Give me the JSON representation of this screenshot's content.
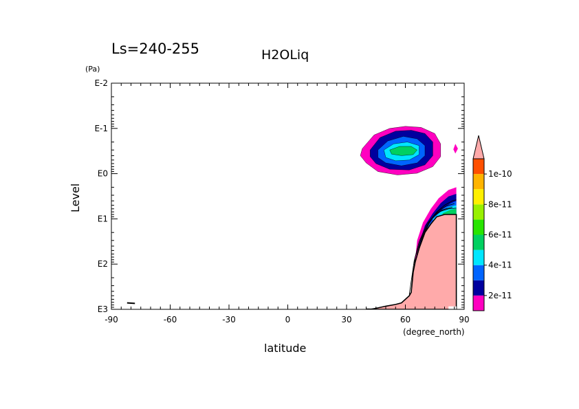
{
  "header": {
    "season": "Ls=240-255",
    "variable": "H2OLiq"
  },
  "chart_data": {
    "type": "heatmap",
    "title": "H2OLiq",
    "subtitle": "Ls=240-255",
    "xlabel": "latitude",
    "xunit": "(degree_north)",
    "ylabel": "Level",
    "yunit": "(Pa)",
    "xlim": [
      -90,
      90
    ],
    "x_ticks": [
      -90,
      -60,
      -30,
      0,
      30,
      60,
      90
    ],
    "x_tick_labels": [
      "-90",
      "-60",
      "-30",
      "0",
      "30",
      "60",
      "90"
    ],
    "ylim_pa": [
      0.01,
      1000
    ],
    "y_scale": "log",
    "y_inverted": true,
    "y_ticks_pa": [
      0.01,
      0.1,
      1,
      10,
      100,
      1000
    ],
    "y_tick_labels": [
      "E-2",
      "E-1",
      "E0",
      "E1",
      "E2",
      "E3"
    ],
    "colorbar": {
      "levels": [
        1e-11,
        2e-11,
        3e-11,
        4e-11,
        5e-11,
        6e-11,
        7e-11,
        8e-11,
        9e-11,
        1e-10,
        1.1e-10
      ],
      "colors": [
        "#ff00c0",
        "#00009e",
        "#0064ff",
        "#00e6ff",
        "#00d060",
        "#28e400",
        "#98f000",
        "#fff000",
        "#ffb400",
        "#ff5000",
        "#ff6464"
      ],
      "extend_color": "#ffaaaa",
      "labels": [
        "2e-11",
        "4e-11",
        "6e-11",
        "8e-11",
        "1e-10"
      ],
      "label_values": [
        2e-11,
        4e-11,
        6e-11,
        8e-11,
        1e-10
      ]
    },
    "terrain_color": "#ffaaaa",
    "features": [
      {
        "name": "upper-cloud-band",
        "rings": [
          {
            "level": 1e-11,
            "points": [
              [
                38,
                0.28
              ],
              [
                44,
                0.14
              ],
              [
                52,
                0.1
              ],
              [
                60,
                0.09
              ],
              [
                68,
                0.095
              ],
              [
                75,
                0.13
              ],
              [
                78,
                0.22
              ],
              [
                78,
                0.42
              ],
              [
                74,
                0.7
              ],
              [
                66,
                0.98
              ],
              [
                56,
                1.07
              ],
              [
                46,
                0.9
              ],
              [
                40,
                0.58
              ],
              [
                37,
                0.4
              ]
            ]
          },
          {
            "level": 2e-11,
            "points": [
              [
                42,
                0.3
              ],
              [
                47,
                0.16
              ],
              [
                55,
                0.115
              ],
              [
                63,
                0.11
              ],
              [
                70,
                0.13
              ],
              [
                74,
                0.2
              ],
              [
                74,
                0.4
              ],
              [
                70,
                0.64
              ],
              [
                62,
                0.83
              ],
              [
                52,
                0.8
              ],
              [
                45,
                0.6
              ],
              [
                42,
                0.42
              ]
            ]
          },
          {
            "level": 3e-11,
            "points": [
              [
                46,
                0.3
              ],
              [
                51,
                0.19
              ],
              [
                59,
                0.15
              ],
              [
                66,
                0.17
              ],
              [
                70,
                0.24
              ],
              [
                70,
                0.4
              ],
              [
                66,
                0.58
              ],
              [
                58,
                0.67
              ],
              [
                50,
                0.58
              ],
              [
                46,
                0.44
              ]
            ]
          },
          {
            "level": 4e-11,
            "points": [
              [
                49,
                0.3
              ],
              [
                54,
                0.22
              ],
              [
                61,
                0.2
              ],
              [
                67,
                0.24
              ],
              [
                67,
                0.38
              ],
              [
                62,
                0.5
              ],
              [
                55,
                0.52
              ],
              [
                50,
                0.44
              ]
            ]
          },
          {
            "level": 5e-11,
            "points": [
              [
                52,
                0.3
              ],
              [
                57,
                0.25
              ],
              [
                63,
                0.25
              ],
              [
                66,
                0.3
              ],
              [
                64,
                0.38
              ],
              [
                58,
                0.4
              ],
              [
                53,
                0.37
              ]
            ]
          }
        ]
      },
      {
        "name": "edge-blob",
        "rings": [
          {
            "level": 1e-11,
            "points": [
              [
                85.5,
                0.22
              ],
              [
                86.8,
                0.28
              ],
              [
                85.5,
                0.36
              ],
              [
                84.5,
                0.29
              ]
            ]
          }
        ]
      },
      {
        "name": "topography-cloud",
        "rings": [
          {
            "level": 1e-11,
            "points": [
              [
                64,
                500
              ],
              [
                65,
                80
              ],
              [
                66,
                30
              ],
              [
                69,
                12
              ],
              [
                73,
                6
              ],
              [
                77,
                3.5
              ],
              [
                82,
                2.3
              ],
              [
                86,
                2.0
              ],
              [
                86,
                850
              ],
              [
                64,
                850
              ]
            ]
          },
          {
            "level": 2e-11,
            "points": [
              [
                65,
                480
              ],
              [
                66,
                90
              ],
              [
                67,
                35
              ],
              [
                70,
                14
              ],
              [
                74,
                7.5
              ],
              [
                78,
                4.5
              ],
              [
                82,
                3.2
              ],
              [
                86,
                2.8
              ],
              [
                86,
                850
              ],
              [
                65,
                850
              ]
            ]
          },
          {
            "level": 3e-11,
            "points": [
              [
                71,
                15
              ],
              [
                75,
                9
              ],
              [
                79,
                6
              ],
              [
                83,
                4.6
              ],
              [
                86,
                4.0
              ],
              [
                86,
                14
              ],
              [
                71,
                16
              ]
            ]
          },
          {
            "level": 4e-11,
            "points": [
              [
                74,
                10
              ],
              [
                78,
                7
              ],
              [
                82,
                5.5
              ],
              [
                86,
                5.0
              ],
              [
                86,
                9
              ],
              [
                74,
                11
              ]
            ]
          },
          {
            "level": 5e-11,
            "points": [
              [
                79,
                7.5
              ],
              [
                83,
                6.3
              ],
              [
                86,
                6.0
              ],
              [
                86,
                8
              ],
              [
                79,
                8.5
              ]
            ]
          }
        ]
      }
    ],
    "terrain": [
      [
        42,
        1000
      ],
      [
        45,
        950
      ],
      [
        50,
        850
      ],
      [
        55,
        780
      ],
      [
        58,
        720
      ],
      [
        62,
        500
      ],
      [
        63,
        420
      ],
      [
        64,
        150
      ],
      [
        65,
        90
      ],
      [
        67,
        45
      ],
      [
        70,
        20
      ],
      [
        73,
        13
      ],
      [
        76,
        9
      ],
      [
        80,
        8
      ],
      [
        84,
        8
      ],
      [
        86,
        8
      ],
      [
        86,
        1000
      ]
    ],
    "terrain_notch": [
      [
        82,
        1000
      ],
      [
        86,
        1000
      ],
      [
        86,
        860
      ],
      [
        82,
        860
      ]
    ],
    "isolines": [
      [
        [
          63,
          420
        ],
        [
          65,
          70
        ],
        [
          68,
          28
        ],
        [
          72,
          12
        ],
        [
          76,
          7
        ],
        [
          80,
          5
        ],
        [
          84,
          4
        ],
        [
          86,
          3.8
        ]
      ],
      [
        [
          64,
          300
        ],
        [
          66,
          60
        ],
        [
          69,
          24
        ],
        [
          73,
          10.5
        ],
        [
          77,
          6.6
        ],
        [
          81,
          5.2
        ],
        [
          85,
          4.6
        ]
      ],
      [
        [
          62,
          470
        ],
        [
          64.5,
          85
        ],
        [
          67,
          32
        ],
        [
          71,
          13
        ],
        [
          75,
          8
        ],
        [
          79,
          6.3
        ],
        [
          84,
          5.5
        ]
      ],
      [
        [
          64,
          200
        ],
        [
          67,
          45
        ],
        [
          70,
          18
        ],
        [
          74,
          9
        ],
        [
          78,
          6.8
        ],
        [
          82,
          6.0
        ],
        [
          86,
          5.8
        ]
      ]
    ],
    "specks": [
      [
        [
          -82,
          720
        ],
        [
          -78,
          740
        ]
      ],
      [
        [
          40,
          990
        ],
        [
          44,
          1000
        ]
      ]
    ]
  }
}
